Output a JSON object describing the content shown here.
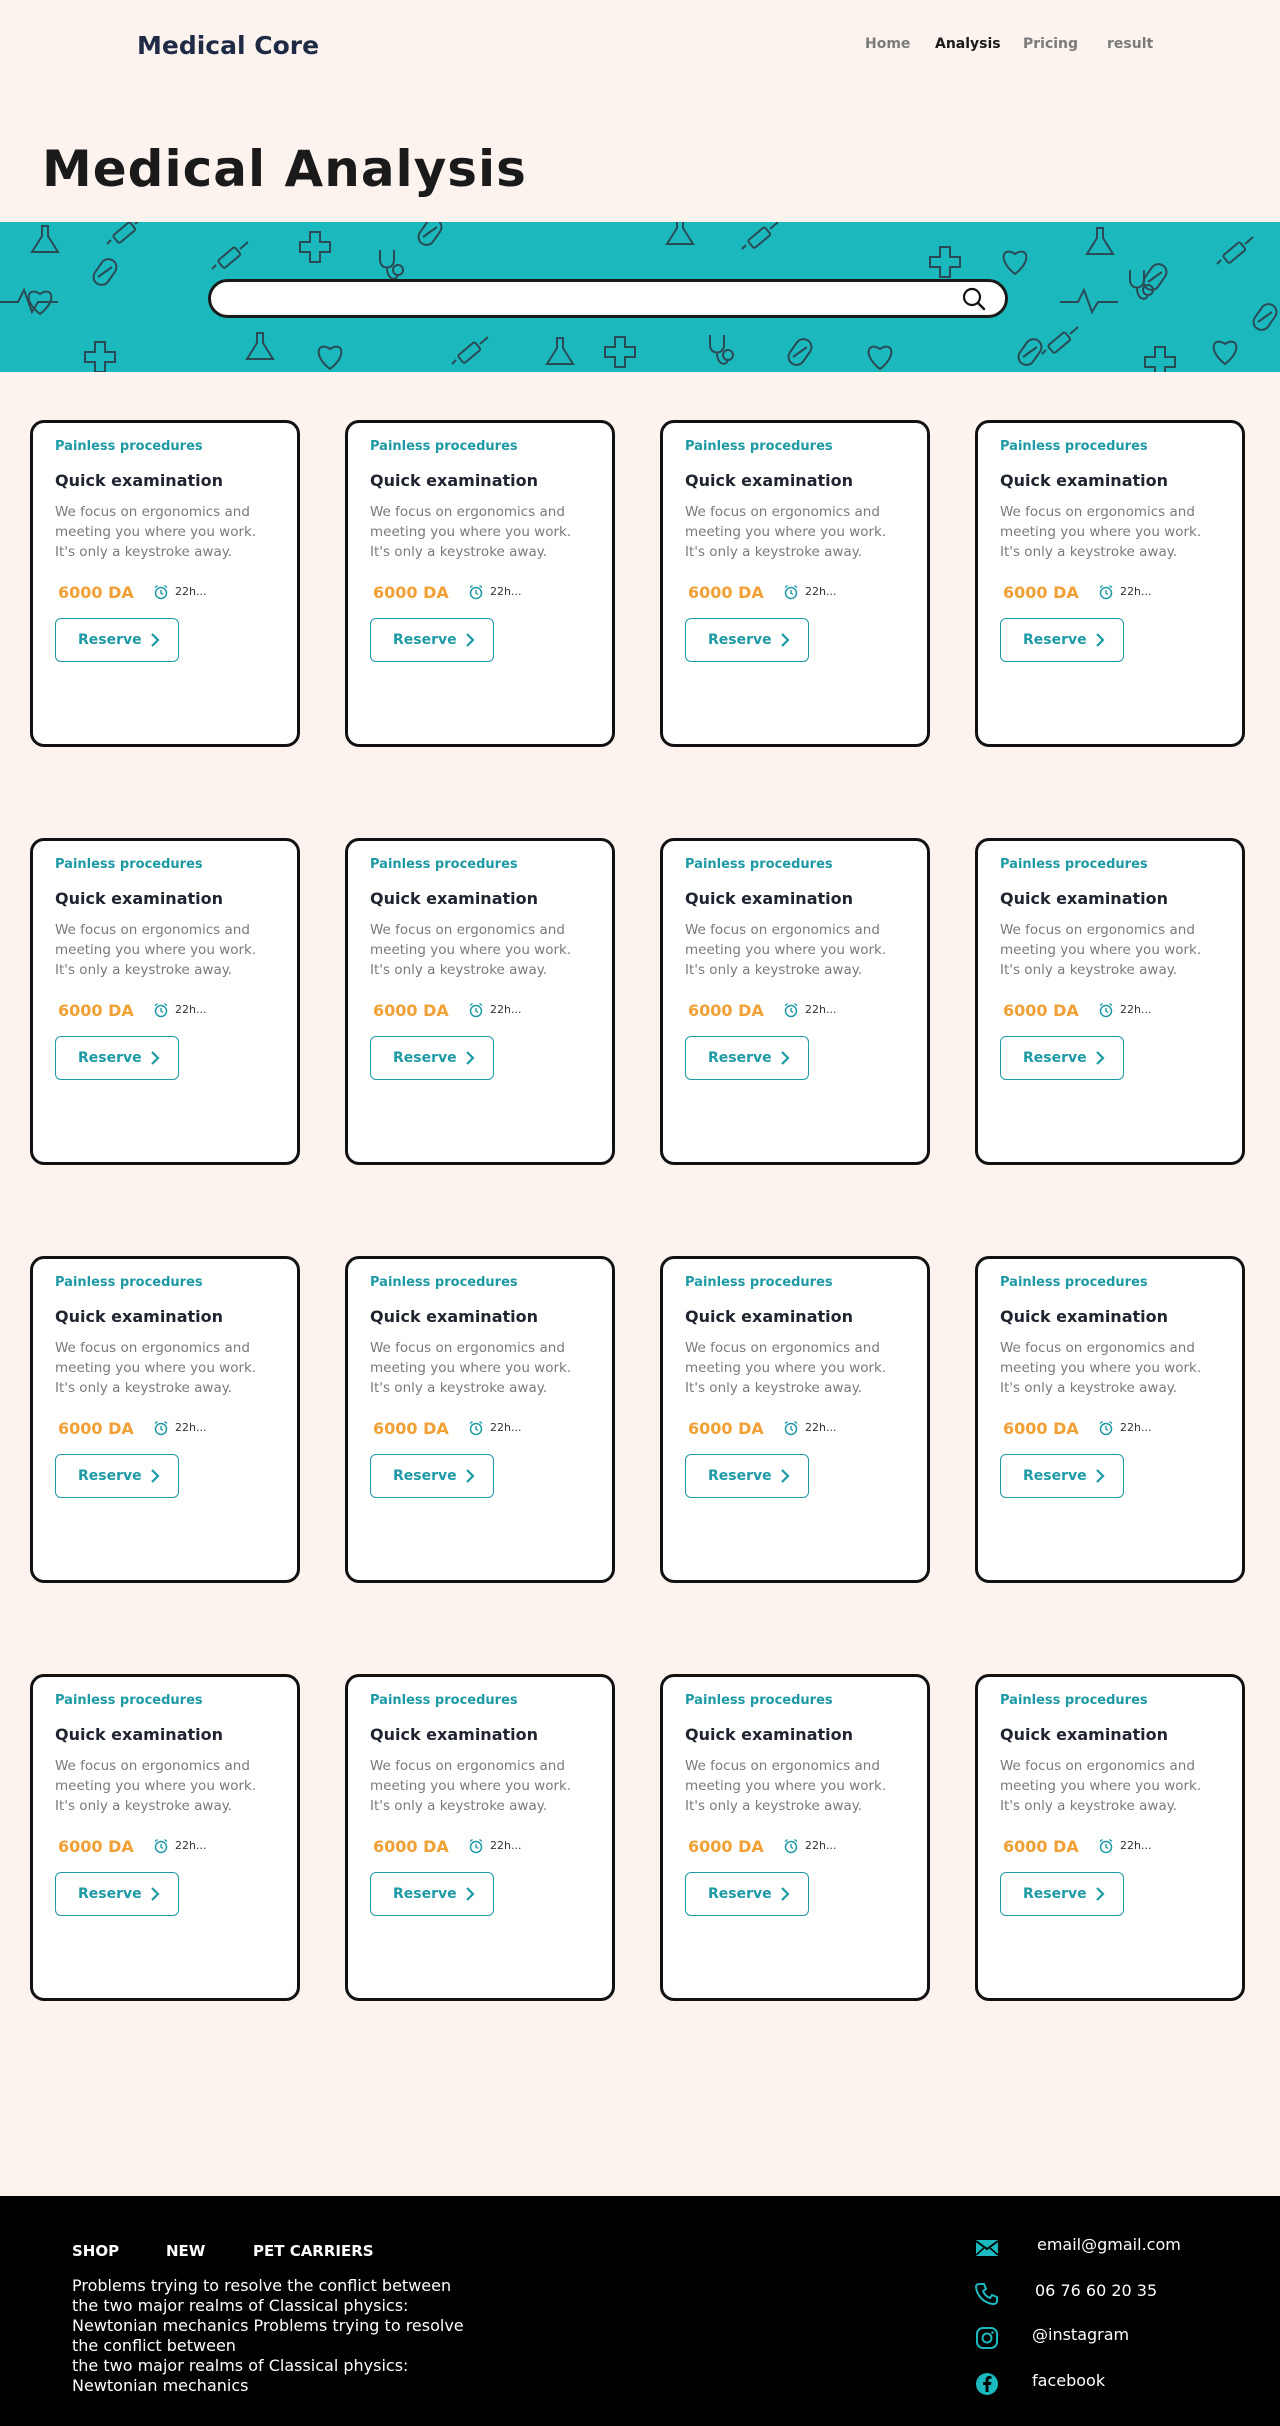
{
  "header": {
    "logo": "Medical Core",
    "nav": [
      {
        "label": "Home",
        "active": false
      },
      {
        "label": "Analysis",
        "active": true
      },
      {
        "label": "Pricing",
        "active": false
      },
      {
        "label": "result",
        "active": false
      }
    ]
  },
  "page": {
    "title": "Medical Analysis"
  },
  "search": {
    "value": "",
    "placeholder": ""
  },
  "colors": {
    "accent": "#1d9aa5",
    "hero_bg": "#1bb9bd",
    "price": "#f0a034",
    "background": "#fcf3ef",
    "footer_bg": "#000000"
  },
  "cards": [
    {
      "tag": "Painless procedures",
      "title": "Quick examination",
      "description": "We focus on ergonomics and\nmeeting you where you work.\nIt's  only a keystroke away.",
      "price": "6000 DA",
      "time": "22h...",
      "button": "Reserve"
    },
    {
      "tag": "Painless procedures",
      "title": "Quick examination",
      "description": "We focus on ergonomics and\nmeeting you where you work.\nIt's  only a keystroke away.",
      "price": "6000 DA",
      "time": "22h...",
      "button": "Reserve"
    },
    {
      "tag": "Painless procedures",
      "title": "Quick examination",
      "description": "We focus on ergonomics and\nmeeting you where you work.\nIt's  only a keystroke away.",
      "price": "6000 DA",
      "time": "22h...",
      "button": "Reserve"
    },
    {
      "tag": "Painless procedures",
      "title": "Quick examination",
      "description": "We focus on ergonomics and\nmeeting you where you work.\nIt's  only a keystroke away.",
      "price": "6000 DA",
      "time": "22h...",
      "button": "Reserve"
    },
    {
      "tag": "Painless procedures",
      "title": "Quick examination",
      "description": "We focus on ergonomics and\nmeeting you where you work.\nIt's  only a keystroke away.",
      "price": "6000 DA",
      "time": "22h...",
      "button": "Reserve"
    },
    {
      "tag": "Painless procedures",
      "title": "Quick examination",
      "description": "We focus on ergonomics and\nmeeting you where you work.\nIt's  only a keystroke away.",
      "price": "6000 DA",
      "time": "22h...",
      "button": "Reserve"
    },
    {
      "tag": "Painless procedures",
      "title": "Quick examination",
      "description": "We focus on ergonomics and\nmeeting you where you work.\nIt's  only a keystroke away.",
      "price": "6000 DA",
      "time": "22h...",
      "button": "Reserve"
    },
    {
      "tag": "Painless procedures",
      "title": "Quick examination",
      "description": "We focus on ergonomics and\nmeeting you where you work.\nIt's  only a keystroke away.",
      "price": "6000 DA",
      "time": "22h...",
      "button": "Reserve"
    },
    {
      "tag": "Painless procedures",
      "title": "Quick examination",
      "description": "We focus on ergonomics and\nmeeting you where you work.\nIt's  only a keystroke away.",
      "price": "6000 DA",
      "time": "22h...",
      "button": "Reserve"
    },
    {
      "tag": "Painless procedures",
      "title": "Quick examination",
      "description": "We focus on ergonomics and\nmeeting you where you work.\nIt's  only a keystroke away.",
      "price": "6000 DA",
      "time": "22h...",
      "button": "Reserve"
    },
    {
      "tag": "Painless procedures",
      "title": "Quick examination",
      "description": "We focus on ergonomics and\nmeeting you where you work.\nIt's  only a keystroke away.",
      "price": "6000 DA",
      "time": "22h...",
      "button": "Reserve"
    },
    {
      "tag": "Painless procedures",
      "title": "Quick examination",
      "description": "We focus on ergonomics and\nmeeting you where you work.\nIt's  only a keystroke away.",
      "price": "6000 DA",
      "time": "22h...",
      "button": "Reserve"
    },
    {
      "tag": "Painless procedures",
      "title": "Quick examination",
      "description": "We focus on ergonomics and\nmeeting you where you work.\nIt's  only a keystroke away.",
      "price": "6000 DA",
      "time": "22h...",
      "button": "Reserve"
    },
    {
      "tag": "Painless procedures",
      "title": "Quick examination",
      "description": "We focus on ergonomics and\nmeeting you where you work.\nIt's  only a keystroke away.",
      "price": "6000 DA",
      "time": "22h...",
      "button": "Reserve"
    },
    {
      "tag": "Painless procedures",
      "title": "Quick examination",
      "description": "We focus on ergonomics and\nmeeting you where you work.\nIt's  only a keystroke away.",
      "price": "6000 DA",
      "time": "22h...",
      "button": "Reserve"
    },
    {
      "tag": "Painless procedures",
      "title": "Quick examination",
      "description": "We focus on ergonomics and\nmeeting you where you work.\nIt's  only a keystroke away.",
      "price": "6000 DA",
      "time": "22h...",
      "button": "Reserve"
    }
  ],
  "footer": {
    "links": [
      "SHOP",
      "NEW",
      "PET CARRIERS"
    ],
    "text": "Problems trying to resolve the conflict between\nthe two major realms of Classical physics:\nNewtonian mechanics  Problems trying to resolve\nthe conflict between\nthe two major realms of Classical physics:\nNewtonian mechanics",
    "contacts": [
      {
        "icon": "mail-icon",
        "label": "email@gmail.com"
      },
      {
        "icon": "phone-icon",
        "label": "06 76 60 20 35"
      },
      {
        "icon": "instagram-icon",
        "label": "@instagram"
      },
      {
        "icon": "facebook-icon",
        "label": "facebook"
      }
    ]
  }
}
